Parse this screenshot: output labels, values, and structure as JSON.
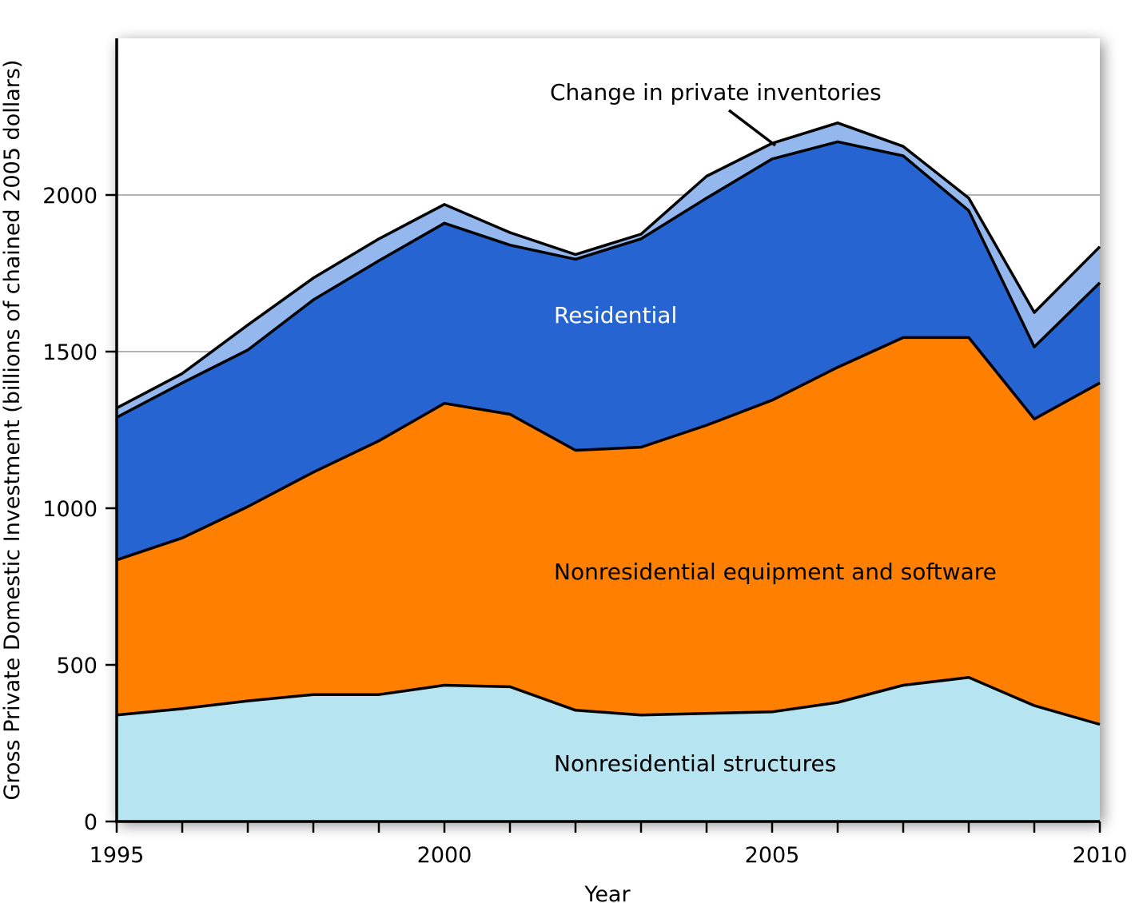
{
  "chart_data": {
    "type": "area",
    "stacked": true,
    "xlabel": "Year",
    "ylabel": "Gross Private Domestic Investment (billions of chained 2005 dollars)",
    "xlim": [
      1995,
      2010
    ],
    "ylim": [
      0,
      2500
    ],
    "x_ticks": [
      1995,
      2000,
      2005,
      2010
    ],
    "y_ticks": [
      0,
      500,
      1000,
      1500,
      2000
    ],
    "gridlines_y": [
      1500,
      2000
    ],
    "x": [
      1995,
      1996,
      1997,
      1998,
      1999,
      2000,
      2001,
      2002,
      2003,
      2004,
      2005,
      2006,
      2007,
      2008,
      2009,
      2010
    ],
    "series": [
      {
        "name": "Nonresidential structures",
        "color": "#b6e4f0",
        "values": [
          340,
          360,
          385,
          405,
          405,
          435,
          430,
          355,
          340,
          345,
          350,
          380,
          435,
          460,
          370,
          310
        ]
      },
      {
        "name": "Nonresidential equipment and software",
        "color": "#ff7f00",
        "values": [
          495,
          545,
          620,
          710,
          810,
          900,
          870,
          830,
          855,
          920,
          995,
          1070,
          1110,
          1085,
          915,
          1090
        ]
      },
      {
        "name": "Residential",
        "color": "#2664d2",
        "values": [
          455,
          495,
          500,
          550,
          575,
          575,
          540,
          610,
          665,
          725,
          770,
          720,
          580,
          405,
          230,
          320
        ]
      },
      {
        "name": "Change in private inventories",
        "color": "#94b8ee",
        "values": [
          30,
          30,
          80,
          70,
          70,
          60,
          40,
          15,
          15,
          70,
          50,
          60,
          30,
          40,
          110,
          115
        ]
      }
    ],
    "annotations": [
      {
        "text": "Change in private inventories",
        "pointer_to": 2005
      }
    ]
  }
}
